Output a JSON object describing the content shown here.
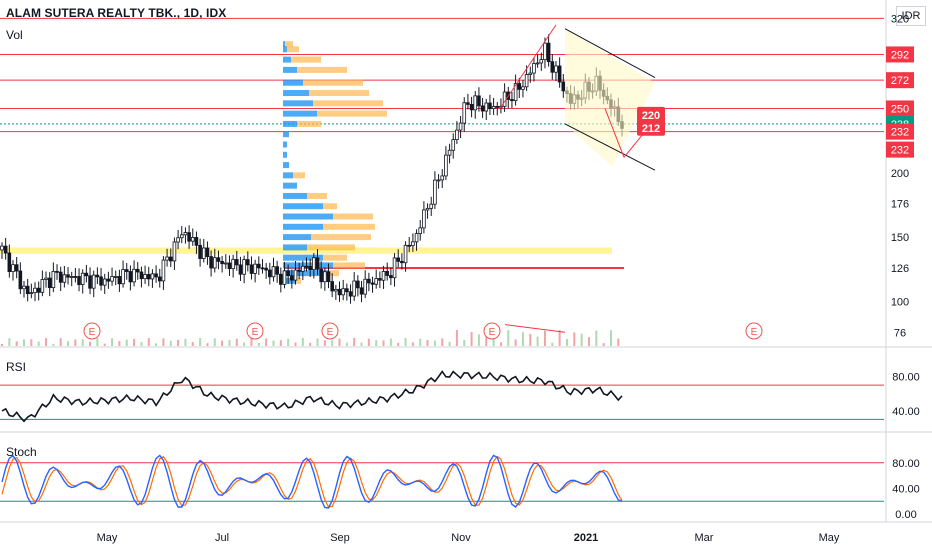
{
  "header": {
    "ticker": "ALAM SUTERA REALTY TBK., 1D, IDX",
    "currency": "IDR"
  },
  "panes": {
    "volume_label": "Vol",
    "rsi_label": "RSI",
    "stoch_label": "Stoch"
  },
  "axes": {
    "price_ticks": [
      "76",
      "100",
      "126",
      "150",
      "176",
      "200",
      "320"
    ],
    "rsi_ticks": [
      "80.00",
      "40.00"
    ],
    "stoch_ticks": [
      "80.00",
      "40.00",
      "0.00"
    ],
    "months": [
      "May",
      "Jul",
      "Sep",
      "Nov",
      "2021",
      "Mar",
      "May"
    ]
  },
  "price_levels": [
    {
      "label": "292",
      "price": 292,
      "color": "#f23645"
    },
    {
      "label": "272",
      "price": 272,
      "color": "#f23645"
    },
    {
      "label": "250",
      "price": 250,
      "color": "#f23645"
    },
    {
      "label": "238",
      "price": 238,
      "color": "#089981"
    },
    {
      "label": "232",
      "price": 232,
      "color": "#f23645"
    },
    {
      "label": "232",
      "price": 232,
      "color": "#f23645"
    }
  ],
  "callouts": [
    {
      "label": "220",
      "price": 245
    },
    {
      "label": "212",
      "price": 235
    }
  ],
  "earnings_markers": [
    "E",
    "E",
    "E",
    "E",
    "E"
  ],
  "colors": {
    "up": "#089981",
    "down": "#f23645",
    "candle": "#131722",
    "highlight": "#fff176",
    "rsi_line": "#131722",
    "stoch_k": "#2962ff",
    "stoch_d": "#ff6d00"
  },
  "chart_data": {
    "type": "candlestick",
    "title": "ALAM SUTERA REALTY TBK., 1D, IDX",
    "x_range": [
      "2020-03",
      "2021-05"
    ],
    "y_range": [
      70,
      325
    ],
    "close_series": {
      "dates": [
        "2020-03-01",
        "2020-03-15",
        "2020-04-01",
        "2020-04-15",
        "2020-05-01",
        "2020-05-15",
        "2020-06-01",
        "2020-06-15",
        "2020-07-01",
        "2020-07-15",
        "2020-08-01",
        "2020-08-15",
        "2020-09-01",
        "2020-09-15",
        "2020-10-01",
        "2020-10-15",
        "2020-11-01",
        "2020-11-10",
        "2020-11-20",
        "2020-12-01",
        "2020-12-10",
        "2020-12-20",
        "2021-01-01",
        "2021-01-08",
        "2021-01-15"
      ],
      "values": [
        140,
        105,
        120,
        118,
        116,
        122,
        118,
        155,
        132,
        128,
        126,
        118,
        130,
        106,
        112,
        122,
        150,
        200,
        255,
        250,
        265,
        295,
        255,
        270,
        238
      ]
    },
    "horizontal_levels": [
      292,
      272,
      250,
      232,
      126
    ],
    "rsi": {
      "values": [
        40,
        30,
        55,
        50,
        52,
        55,
        50,
        78,
        58,
        52,
        48,
        45,
        55,
        46,
        50,
        55,
        65,
        82,
        82,
        80,
        76,
        75,
        62,
        65,
        55
      ]
    },
    "stoch": {
      "k": [
        60,
        10,
        80,
        20,
        75,
        30,
        85,
        20,
        70,
        25,
        80,
        15,
        75,
        20,
        60,
        40,
        80,
        85,
        70,
        85,
        40,
        80,
        20,
        85,
        10
      ]
    }
  }
}
